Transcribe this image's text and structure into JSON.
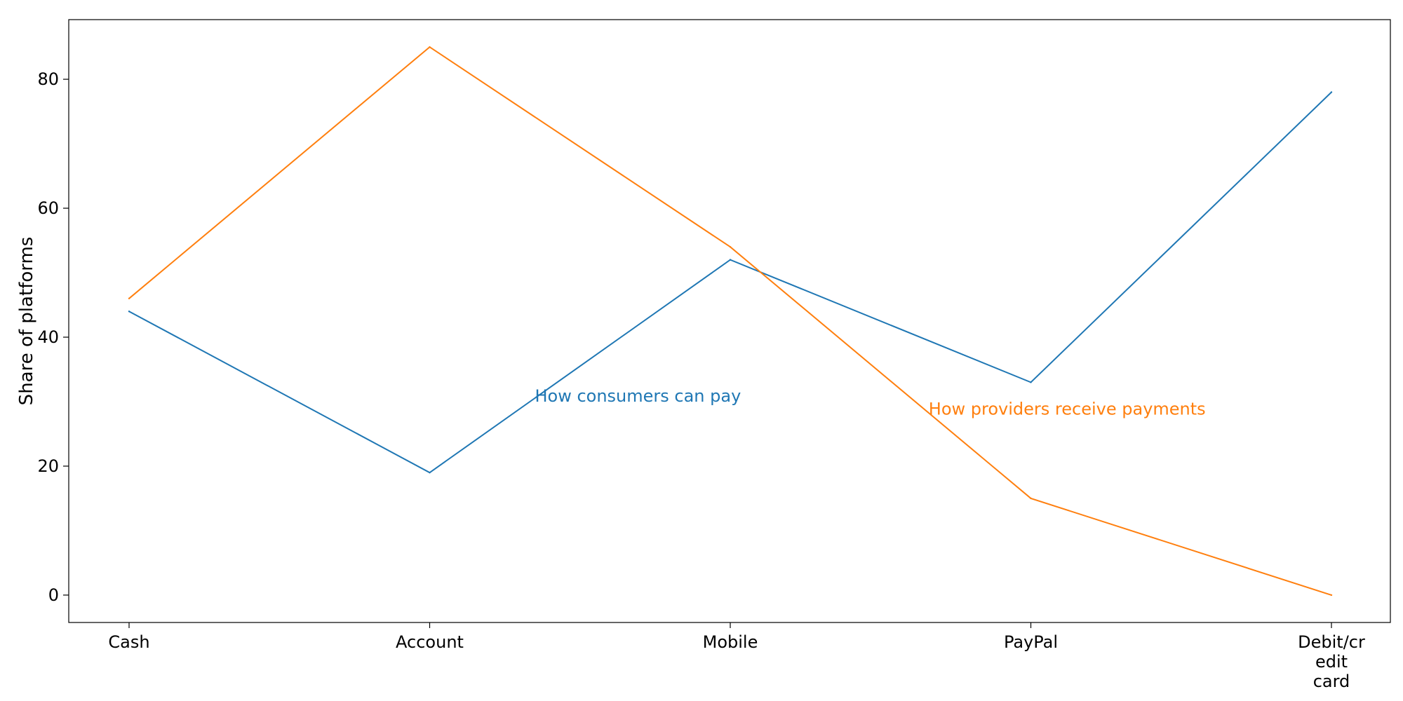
{
  "chart_data": {
    "type": "line",
    "categories": [
      "Cash",
      "Account",
      "Mobile",
      "PayPal",
      "Debit/credit card"
    ],
    "category_label_lines": [
      [
        "Cash"
      ],
      [
        "Account"
      ],
      [
        "Mobile"
      ],
      [
        "PayPal"
      ],
      [
        "Debit/cr",
        "edit",
        "card"
      ]
    ],
    "series": [
      {
        "values": [
          44,
          19,
          52,
          33,
          78
        ],
        "color": "#1f77b4"
      },
      {
        "values": [
          46,
          85,
          54,
          15,
          0
        ],
        "color": "#ff7f0e"
      }
    ],
    "annotations": [
      {
        "text": "How consumers can pay",
        "color": "#1f77b4",
        "category_pos": 1.35,
        "y": 30
      },
      {
        "text": "How providers receive payments",
        "color": "#ff7f0e",
        "category_pos": 2.66,
        "y": 28
      }
    ],
    "xlabel": "",
    "ylabel": "Share of platforms",
    "ylim": [
      -4.25,
      89.25
    ],
    "yticks": [
      0,
      20,
      40,
      60,
      80
    ],
    "grid": false,
    "legend": "none"
  }
}
